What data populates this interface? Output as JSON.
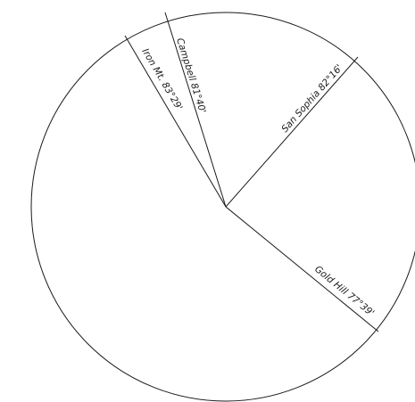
{
  "diagram": {
    "labels": {
      "campbell": "Campbell 81°40'",
      "iron_mt": "Iron Mt. 83°29'",
      "san_sophia": "San Sophia 82°16'",
      "gold_hill": "Gold Hill 77°39'"
    }
  }
}
